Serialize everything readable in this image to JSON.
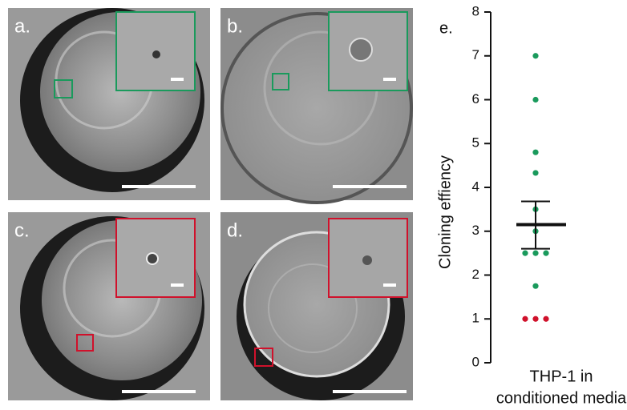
{
  "panels": [
    "a.",
    "b.",
    "c.",
    "d."
  ],
  "chart_data": {
    "type": "scatter",
    "title": "e.",
    "ylabel": "Cloning effiency",
    "xlabel": [
      "THP-1 in",
      "conditioned media"
    ],
    "ylim": [
      0,
      8
    ],
    "yticks": [
      0,
      1,
      2,
      3,
      4,
      5,
      6,
      7,
      8
    ],
    "series": [
      {
        "color": "#1a9a5c",
        "values": [
          7,
          6,
          4.8,
          4.33,
          3.5,
          3,
          2.5,
          2.5,
          2.5,
          1.75
        ]
      },
      {
        "color": "#d0112b",
        "values": [
          1,
          1,
          1
        ]
      }
    ],
    "mean": 3.15,
    "error_low": 2.6,
    "error_high": 3.68
  }
}
